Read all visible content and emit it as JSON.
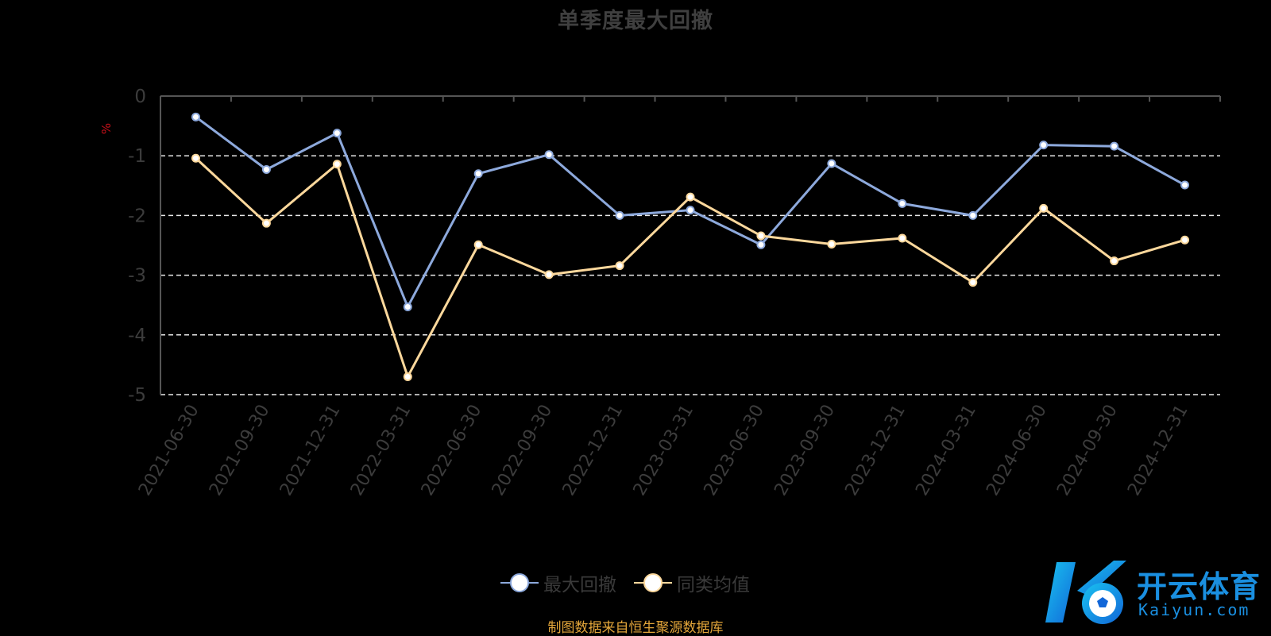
{
  "chart_data": {
    "type": "line",
    "title": "单季度最大回撤",
    "ylabel": "%",
    "xlabel": "",
    "categories": [
      "2021-06-30",
      "2021-09-30",
      "2021-12-31",
      "2022-03-31",
      "2022-06-30",
      "2022-09-30",
      "2022-12-31",
      "2023-03-31",
      "2023-06-30",
      "2023-09-30",
      "2023-12-31",
      "2024-03-31",
      "2024-06-30",
      "2024-09-30",
      "2024-12-31"
    ],
    "y_ticks": [
      "0",
      "-1",
      "-2",
      "-3",
      "-4",
      "-5"
    ],
    "ylim": [
      -5,
      0
    ],
    "grid": "horizontal dashed",
    "legend_position": "bottom-center",
    "series": [
      {
        "name": "最大回撤",
        "color": "#8da9dc",
        "values": [
          -0.35,
          -1.23,
          -0.62,
          -3.53,
          -1.3,
          -0.98,
          -2.0,
          -1.91,
          -2.49,
          -1.13,
          -1.8,
          -2.0,
          -0.82,
          -0.84,
          -1.49
        ]
      },
      {
        "name": "同类均值",
        "color": "#fcd89c",
        "values": [
          -1.04,
          -2.13,
          -1.14,
          -4.7,
          -2.49,
          -2.99,
          -2.84,
          -1.69,
          -2.34,
          -2.48,
          -2.38,
          -3.12,
          -1.88,
          -2.76,
          -2.41
        ]
      }
    ]
  },
  "footer": {
    "source": "制图数据来自恒生聚源数据库"
  },
  "watermark": {
    "brand_cn": "开云体育",
    "brand_en": "Kaiyun.com"
  }
}
